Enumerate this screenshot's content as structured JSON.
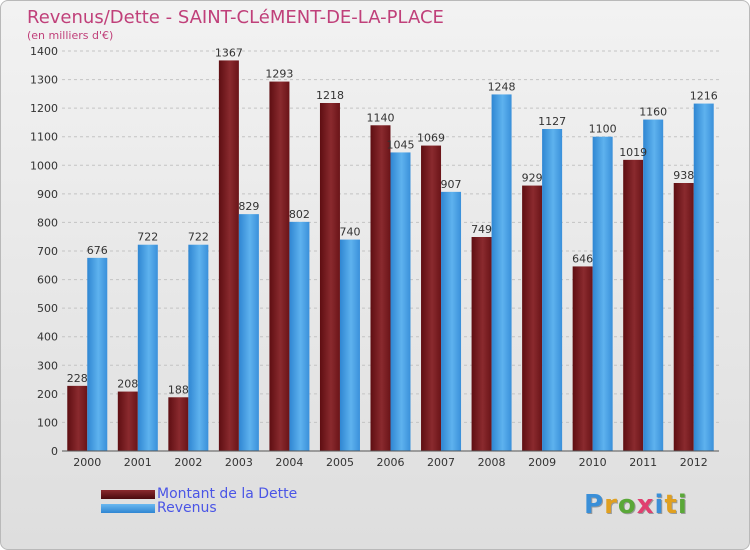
{
  "title": "Revenus/Dette - SAINT-CLéMENT-DE-LA-PLACE",
  "subtitle": "(en milliers d'€)",
  "colors": {
    "title": "#c0407a",
    "dette": "#7a1a1e",
    "revenus": "#4aa0e6",
    "legend_text": "#4a55e6"
  },
  "legend": {
    "items": [
      {
        "label": "Montant de la Dette"
      },
      {
        "label": "Revenus"
      }
    ]
  },
  "logo": {
    "text": "Proxiti"
  },
  "chart_data": {
    "type": "bar",
    "categories": [
      "2000",
      "2001",
      "2002",
      "2003",
      "2004",
      "2005",
      "2006",
      "2007",
      "2008",
      "2009",
      "2010",
      "2011",
      "2012"
    ],
    "series": [
      {
        "name": "Montant de la Dette",
        "values": [
          228,
          208,
          188,
          1367,
          1293,
          1218,
          1140,
          1069,
          749,
          929,
          646,
          1019,
          938
        ],
        "labels": [
          "228",
          "208",
          "188",
          "1367",
          "1293",
          "1218",
          "1140",
          "1069",
          "749",
          "929",
          "646",
          "1019",
          "938"
        ]
      },
      {
        "name": "Revenus",
        "values": [
          676,
          722,
          722,
          829,
          802,
          740,
          1045,
          907,
          1248,
          1127,
          1100,
          1160,
          1216
        ],
        "labels": [
          "676",
          "722",
          "722",
          "829",
          "802",
          "740",
          "1045",
          "907",
          "1248",
          "1127",
          "1100",
          "1160",
          "1216"
        ]
      }
    ],
    "ylim": [
      0,
      1400
    ],
    "yticks": [
      "0",
      "100",
      "200",
      "300",
      "400",
      "500",
      "600",
      "700",
      "800",
      "900",
      "1000",
      "1100",
      "1200",
      "1300",
      "1400"
    ],
    "grid": true,
    "legend_position": "bottom-left"
  }
}
